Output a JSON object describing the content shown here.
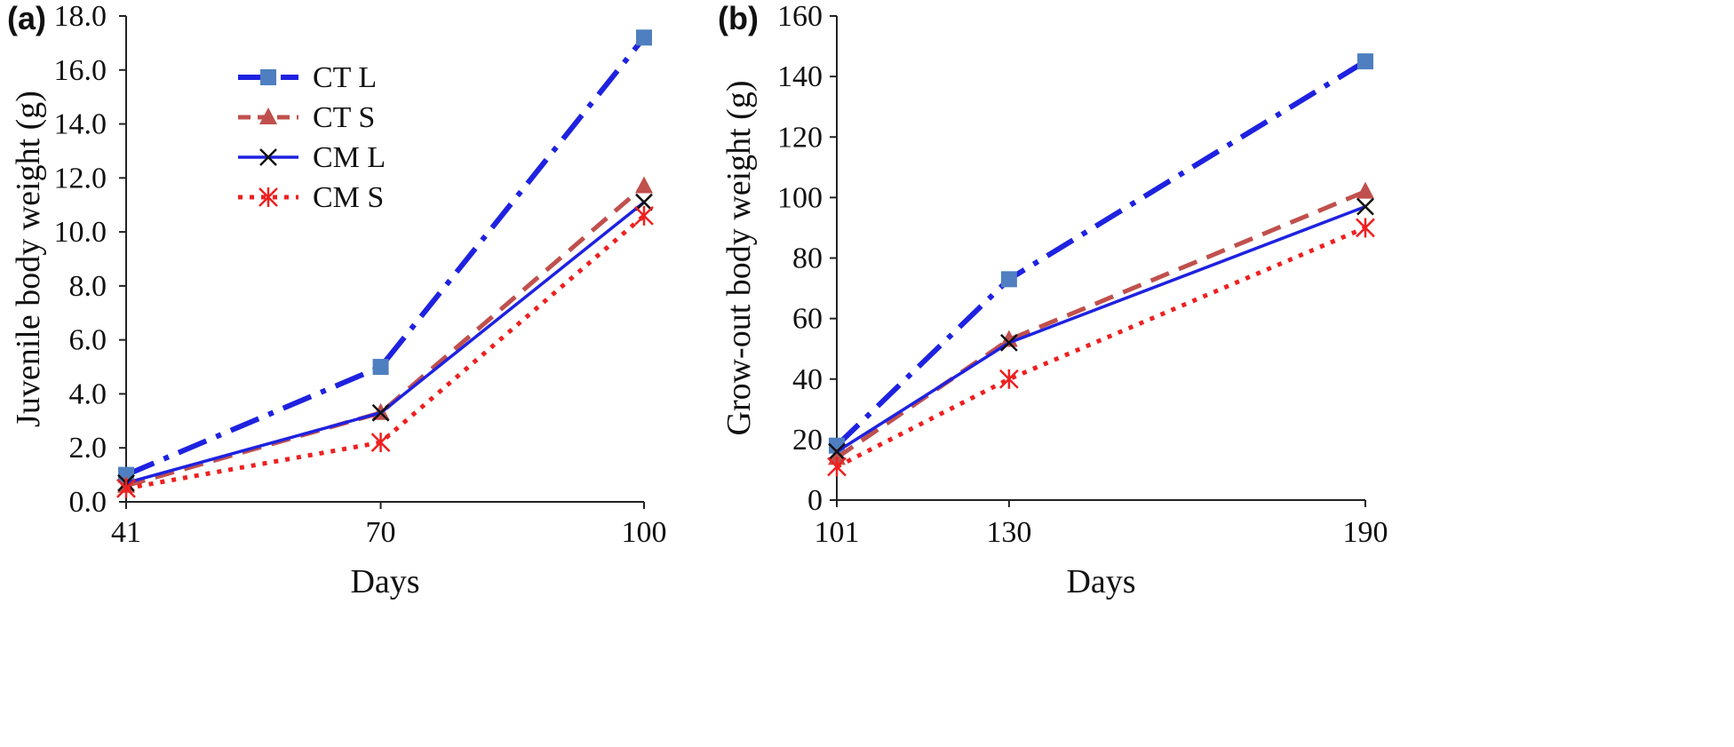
{
  "chart_data": [
    {
      "type": "line",
      "panel_label": "(a)",
      "xlabel": "Days",
      "ylabel": "Juvenile body weight (g)",
      "x": [
        41,
        70,
        100
      ],
      "x_tick_labels": [
        "41",
        "70",
        "100"
      ],
      "ylim": [
        0,
        18
      ],
      "y_tick_values": [
        0,
        2,
        4,
        6,
        8,
        10,
        12,
        14,
        16,
        18
      ],
      "y_tick_labels": [
        "0.0",
        "2.0",
        "4.0",
        "6.0",
        "8.0",
        "10.0",
        "12.0",
        "14.0",
        "16.0",
        "18.0"
      ],
      "grid": false,
      "legend_placement": "top-left",
      "series": [
        {
          "name": "CT L",
          "values": [
            1.0,
            5.0,
            17.2
          ]
        },
        {
          "name": "CT S",
          "values": [
            0.6,
            3.3,
            11.7
          ]
        },
        {
          "name": "CM L",
          "values": [
            0.7,
            3.3,
            11.1
          ]
        },
        {
          "name": "CM S",
          "values": [
            0.5,
            2.2,
            10.6
          ]
        }
      ]
    },
    {
      "type": "line",
      "panel_label": "(b)",
      "xlabel": "Days",
      "ylabel": "Grow-out body weight (g)",
      "x": [
        101,
        130,
        190
      ],
      "x_tick_labels": [
        "101",
        "130",
        "190"
      ],
      "ylim": [
        0,
        160
      ],
      "y_tick_values": [
        0,
        20,
        40,
        60,
        80,
        100,
        120,
        140,
        160
      ],
      "y_tick_labels": [
        "0",
        "20",
        "40",
        "60",
        "80",
        "100",
        "120",
        "140",
        "160"
      ],
      "grid": false,
      "series": [
        {
          "name": "CT L",
          "values": [
            18,
            73,
            145
          ]
        },
        {
          "name": "CT S",
          "values": [
            14,
            53,
            102
          ]
        },
        {
          "name": "CM L",
          "values": [
            16,
            52,
            97
          ]
        },
        {
          "name": "CM S",
          "values": [
            11,
            40,
            90
          ]
        }
      ]
    }
  ],
  "series_styles": [
    {
      "name": "CT L",
      "color": "#1e22e0",
      "marker_color": "#4f7fc0",
      "line": "dash-dot",
      "marker": "square"
    },
    {
      "name": "CT S",
      "color": "#c0504d",
      "marker_color": "#c0504d",
      "line": "dashed",
      "marker": "triangle"
    },
    {
      "name": "CM L",
      "color": "#1e22e0",
      "marker_color": "#111111",
      "line": "solid",
      "marker": "x"
    },
    {
      "name": "CM S",
      "color": "#ee2020",
      "marker_color": "#ee2020",
      "line": "dotted",
      "marker": "asterisk"
    }
  ]
}
